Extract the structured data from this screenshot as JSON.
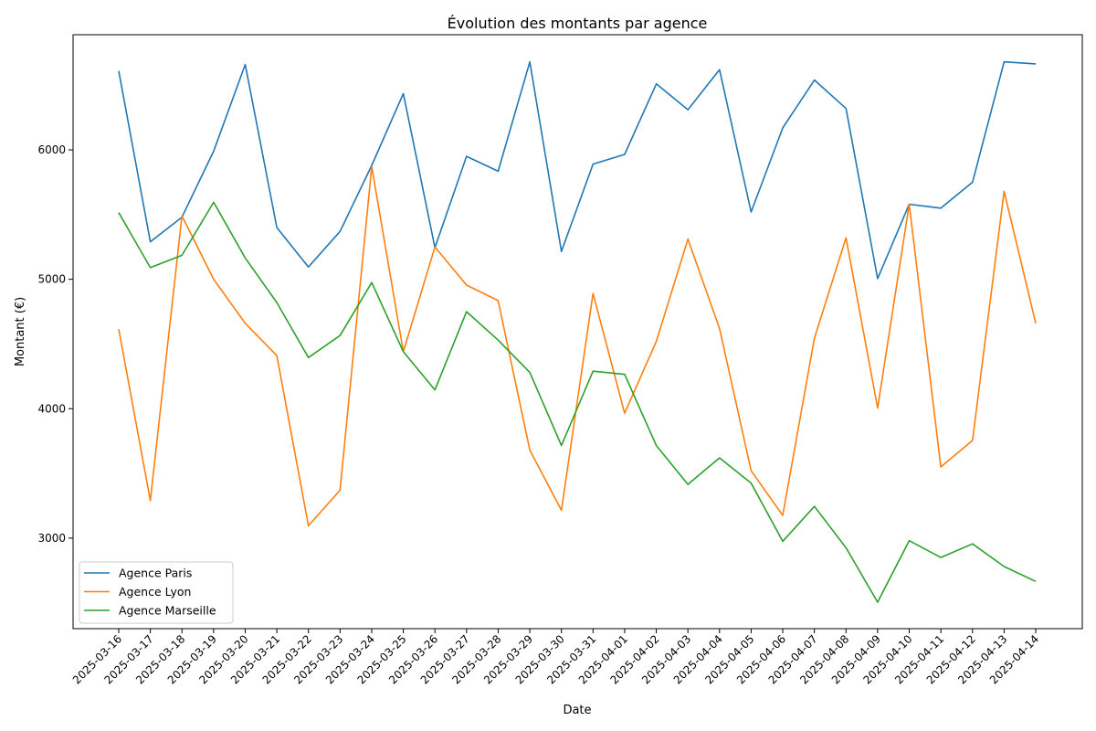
{
  "chart_data": {
    "type": "line",
    "title": "Évolution des montants par agence",
    "xlabel": "Date",
    "ylabel": "Montant (€)",
    "categories": [
      "2025-03-16",
      "2025-03-17",
      "2025-03-18",
      "2025-03-19",
      "2025-03-20",
      "2025-03-21",
      "2025-03-22",
      "2025-03-23",
      "2025-03-24",
      "2025-03-25",
      "2025-03-26",
      "2025-03-27",
      "2025-03-28",
      "2025-03-29",
      "2025-03-30",
      "2025-03-31",
      "2025-04-01",
      "2025-04-02",
      "2025-04-03",
      "2025-04-04",
      "2025-04-05",
      "2025-04-06",
      "2025-04-07",
      "2025-04-08",
      "2025-04-09",
      "2025-04-10",
      "2025-04-11",
      "2025-04-12",
      "2025-04-13",
      "2025-04-14"
    ],
    "ylim": [
      2300,
      6890
    ],
    "yticks": [
      3000,
      4000,
      5000,
      6000
    ],
    "grid": false,
    "legend_position": "lower-left",
    "series": [
      {
        "name": "Agence Paris",
        "color": "#1f77b4",
        "values": [
          6610,
          5290,
          5480,
          5990,
          6660,
          5400,
          5095,
          5370,
          5880,
          6435,
          5245,
          5950,
          5835,
          6680,
          5215,
          5890,
          5965,
          6510,
          6310,
          6620,
          5520,
          6170,
          6540,
          6320,
          5005,
          5580,
          5550,
          5750,
          6680,
          6665
        ]
      },
      {
        "name": "Agence Lyon",
        "color": "#ff7f0e",
        "values": [
          4615,
          3290,
          5490,
          5000,
          4660,
          4410,
          3095,
          3370,
          5870,
          4440,
          5250,
          4955,
          4835,
          3680,
          3215,
          4890,
          3965,
          4520,
          5310,
          4620,
          3520,
          3175,
          4545,
          5320,
          4005,
          5580,
          3550,
          3755,
          5680,
          4660
        ]
      },
      {
        "name": "Agence Marseille",
        "color": "#2ca02c",
        "values": [
          5515,
          5090,
          5185,
          5595,
          5165,
          4820,
          4395,
          4565,
          4975,
          4440,
          4145,
          4750,
          4530,
          4280,
          3715,
          4290,
          4265,
          3715,
          3415,
          3620,
          3425,
          2975,
          3245,
          2925,
          2505,
          2980,
          2850,
          2955,
          2780,
          2665
        ]
      }
    ]
  }
}
